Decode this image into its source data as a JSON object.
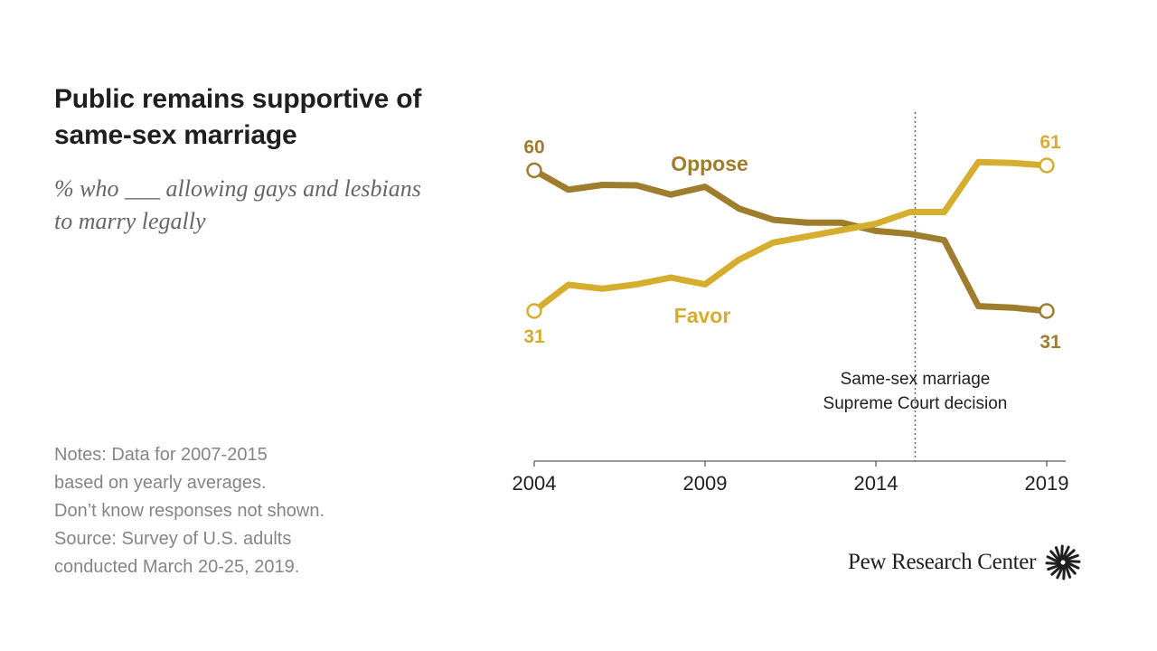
{
  "title": "Public remains supportive of same-sex marriage",
  "subtitle": "% who ___ allowing gays and lesbians to marry legally",
  "notes": [
    "Notes: Data for 2007-2015",
    "based on yearly averages.",
    "Don’t know responses not shown.",
    "Source: Survey of U.S. adults",
    "conducted March 20-25, 2019."
  ],
  "brand": "Pew Research Center",
  "colors": {
    "favor": "#d5ad2f",
    "oppose": "#9e7e2e",
    "reference": "#666666"
  },
  "chart_data": {
    "type": "line",
    "title": "Public remains supportive of same-sex marriage",
    "subtitle": "% who ___ allowing gays and lesbians to marry legally",
    "x": [
      2004,
      2005,
      2006,
      2007,
      2008,
      2009,
      2010,
      2011,
      2012,
      2013,
      2014,
      2015,
      2016,
      2017,
      2018,
      2019
    ],
    "xlim": [
      2004,
      2019.5
    ],
    "ylim": [
      20,
      70
    ],
    "xticks": [
      2004,
      2009,
      2014,
      2019
    ],
    "xtick_labels": [
      "2004",
      "2009",
      "2014",
      "2019"
    ],
    "series": [
      {
        "name": "Oppose",
        "label": "Oppose",
        "values": [
          60,
          56,
          57,
          56.9,
          55,
          56.6,
          52.1,
          49.8,
          49.2,
          49.2,
          47.5,
          46.9,
          45.6,
          32,
          31.7,
          31
        ],
        "start_label": "60",
        "end_label": "31"
      },
      {
        "name": "Favor",
        "label": "Favor",
        "values": [
          31,
          36.4,
          35.6,
          36.5,
          37.9,
          36.5,
          41.6,
          45.1,
          46.4,
          47.7,
          49,
          51.4,
          51.4,
          61.7,
          61.5,
          61
        ],
        "start_label": "31",
        "end_label": "61"
      }
    ],
    "reference_line": {
      "x": 2015.15,
      "label_lines": [
        "Same-sex marriage",
        "Supreme Court decision"
      ]
    },
    "grid": false
  }
}
